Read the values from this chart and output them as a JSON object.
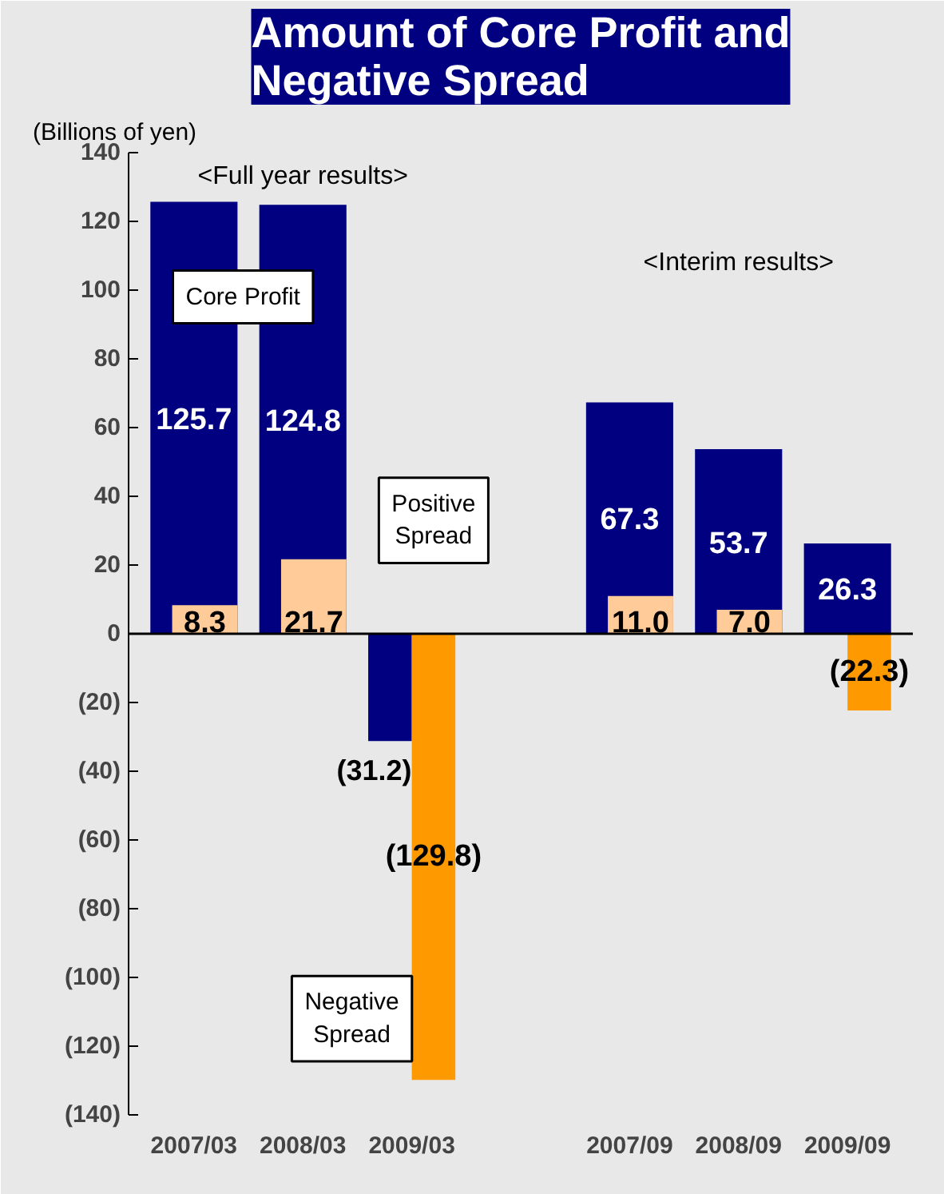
{
  "chart_data": {
    "type": "bar",
    "title": "Amount of Core Profit and\nNegative Spread",
    "ylabel": "(Billions of yen)",
    "categories": [
      "2007/03",
      "2008/03",
      "2009/03",
      null,
      "2007/09",
      "2008/09",
      "2009/09"
    ],
    "series": [
      {
        "name": "Core Profit",
        "color": "#000080",
        "values": [
          125.7,
          124.8,
          -31.2,
          null,
          67.3,
          53.7,
          26.3
        ],
        "value_labels": [
          "125.7",
          "124.8",
          "(31.2)",
          null,
          "67.3",
          "53.7",
          "26.3"
        ]
      },
      {
        "name": "Positive Spread",
        "color": "#ffcc99",
        "values": [
          8.3,
          21.7,
          null,
          null,
          11.0,
          7.0,
          null
        ],
        "value_labels": [
          "8.3",
          "21.7",
          null,
          null,
          "11.0",
          "7.0",
          null
        ]
      },
      {
        "name": "Negative Spread",
        "color": "#ff9900",
        "values": [
          null,
          null,
          -129.8,
          null,
          null,
          null,
          -22.3
        ],
        "value_labels": [
          null,
          null,
          "(129.8)",
          null,
          null,
          null,
          "(22.3)"
        ]
      }
    ],
    "ylim": [
      -140,
      140
    ],
    "yticks": [
      {
        "value": -140,
        "label": "(140)"
      },
      {
        "value": -120,
        "label": "(120)"
      },
      {
        "value": -100,
        "label": "(100)"
      },
      {
        "value": -80,
        "label": "(80)"
      },
      {
        "value": -60,
        "label": "(60)"
      },
      {
        "value": -40,
        "label": "(40)"
      },
      {
        "value": -20,
        "label": "(20)"
      },
      0,
      20,
      40,
      60,
      80,
      100,
      120,
      140
    ],
    "annotations": [
      "<Full year results>",
      "<Interim results>"
    ]
  }
}
